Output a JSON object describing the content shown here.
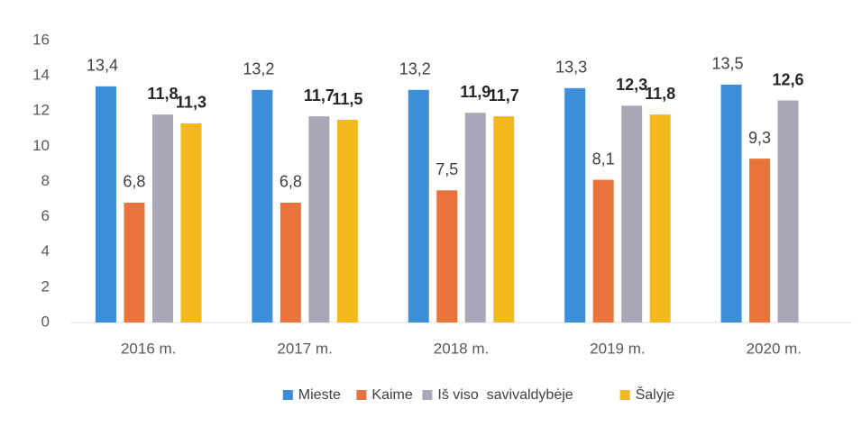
{
  "chart_data": {
    "type": "bar",
    "categories": [
      "2016 m.",
      "2017 m.",
      "2018 m.",
      "2019 m.",
      "2020 m."
    ],
    "series": [
      {
        "name": "Mieste",
        "color": "#3d8ed8",
        "values": [
          13.4,
          13.2,
          13.2,
          13.3,
          13.5
        ],
        "value_labels": [
          "13,4",
          "13,2",
          "13,2",
          "13,3",
          "13,5"
        ]
      },
      {
        "name": "Kaime",
        "color": "#e8733b",
        "values": [
          6.8,
          6.8,
          7.5,
          8.1,
          9.3
        ],
        "value_labels": [
          "6,8",
          "6,8",
          "7,5",
          "8,1",
          "9,3"
        ]
      },
      {
        "name": "Iš viso  savivaldybėje",
        "color": "#aaa6b8",
        "values": [
          11.8,
          11.7,
          11.9,
          12.3,
          12.6
        ],
        "value_labels": [
          "11,8",
          "11,7",
          "11,9",
          "12,3",
          "12,6"
        ]
      },
      {
        "name": "Šalyje",
        "color": "#f4b81f",
        "values": [
          11.3,
          11.5,
          11.7,
          11.8,
          null
        ],
        "value_labels": [
          "11,3",
          "11,5",
          "11,7",
          "11,8",
          null
        ]
      }
    ],
    "ylim": [
      0,
      16
    ],
    "yticks": [
      0,
      2,
      4,
      6,
      8,
      10,
      12,
      14,
      16
    ],
    "grid": false,
    "legend": "bottom"
  }
}
